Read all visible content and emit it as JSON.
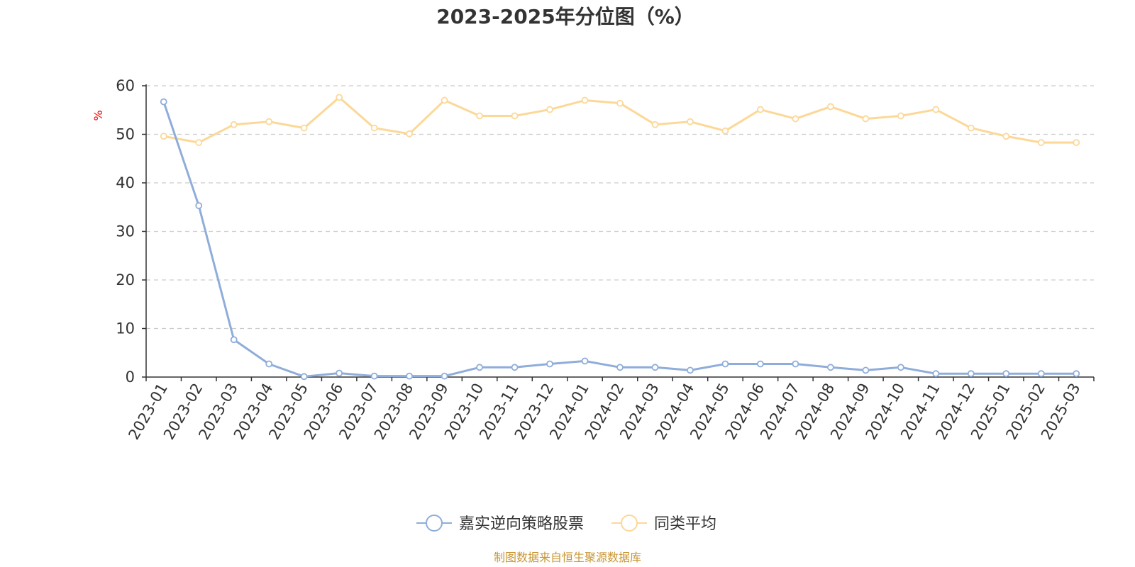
{
  "chart_data": {
    "type": "line",
    "title": "2023-2025年分位图（%）",
    "ylabel": "%",
    "ylim": [
      0,
      60
    ],
    "yticks": [
      0,
      10,
      20,
      30,
      40,
      50,
      60
    ],
    "grid": true,
    "legend_position": "bottom",
    "categories": [
      "2023-01",
      "2023-02",
      "2023-03",
      "2023-04",
      "2023-05",
      "2023-06",
      "2023-07",
      "2023-08",
      "2023-09",
      "2023-10",
      "2023-11",
      "2023-12",
      "2024-01",
      "2024-02",
      "2024-03",
      "2024-04",
      "2024-05",
      "2024-06",
      "2024-07",
      "2024-08",
      "2024-09",
      "2024-10",
      "2024-11",
      "2024-12",
      "2025-01",
      "2025-02",
      "2025-03"
    ],
    "series": [
      {
        "name": "嘉实逆向策略股票",
        "color": "#8fadda",
        "values": [
          56.7,
          35.3,
          7.7,
          2.7,
          0.1,
          0.8,
          0.2,
          0.2,
          0.2,
          2.0,
          2.0,
          2.7,
          3.3,
          2.0,
          2.0,
          1.4,
          2.7,
          2.7,
          2.7,
          2.0,
          1.4,
          2.0,
          0.7,
          0.7,
          0.7,
          0.7,
          0.7
        ]
      },
      {
        "name": "同类平均",
        "color": "#fcd898",
        "values": [
          49.6,
          48.3,
          52.0,
          52.6,
          51.3,
          57.6,
          51.3,
          50.1,
          57.0,
          53.8,
          53.8,
          55.1,
          57.0,
          56.4,
          52.0,
          52.6,
          50.7,
          55.1,
          53.2,
          55.7,
          53.2,
          53.8,
          55.1,
          51.3,
          49.6,
          48.3,
          48.3
        ]
      }
    ]
  },
  "unit_label": "%",
  "source_text": "制图数据来自恒生聚源数据库",
  "colors": {
    "axis": "#333333",
    "grid": "#cccccc",
    "unit": "#ff0000",
    "source": "#c89634"
  }
}
